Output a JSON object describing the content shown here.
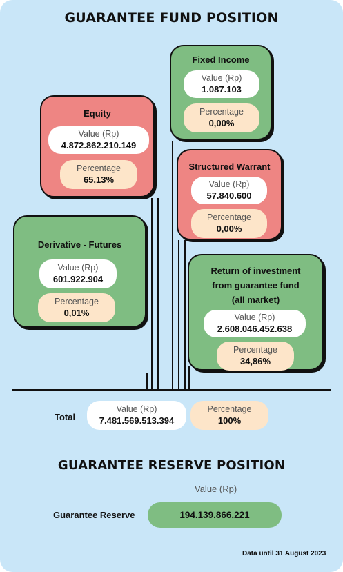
{
  "fund_title": "GUARANTEE FUND POSITION",
  "reserve_title": "GUARANTEE RESERVE POSITION",
  "value_label": "Value (Rp)",
  "percentage_label": "Percentage",
  "cards": {
    "fixed_income": {
      "title": "Fixed Income",
      "value": "1.087.103",
      "percentage": "0,00%",
      "color": "#7fbd82"
    },
    "equity": {
      "title": "Equity",
      "value": "4.872.862.210.149",
      "percentage": "65,13%",
      "color": "#ee8583"
    },
    "structured_warrant": {
      "title": "Structured Warrant",
      "value": "57.840.600",
      "percentage": "0,00%",
      "color": "#ee8583"
    },
    "derivative": {
      "title": "Derivative - Futures",
      "value": "601.922.904",
      "percentage": "0,01%",
      "color": "#7fbd82"
    },
    "return_investment": {
      "title_lines": [
        "Return of investment",
        "from guarantee fund",
        "(all market)"
      ],
      "value": "2.608.046.452.638",
      "percentage": "34,86%",
      "color": "#7fbd82"
    }
  },
  "total": {
    "label": "Total",
    "value": "7.481.569.513.394",
    "percentage": "100%"
  },
  "reserve": {
    "label": "Guarantee Reserve",
    "value_label": "Value (Rp)",
    "value": "194.139.866.221"
  },
  "footnote": "Data until 31 August 2023",
  "colors": {
    "background": "#c9e6f8",
    "green": "#7fbd82",
    "red": "#ee8583",
    "peach": "#fde5c9"
  }
}
